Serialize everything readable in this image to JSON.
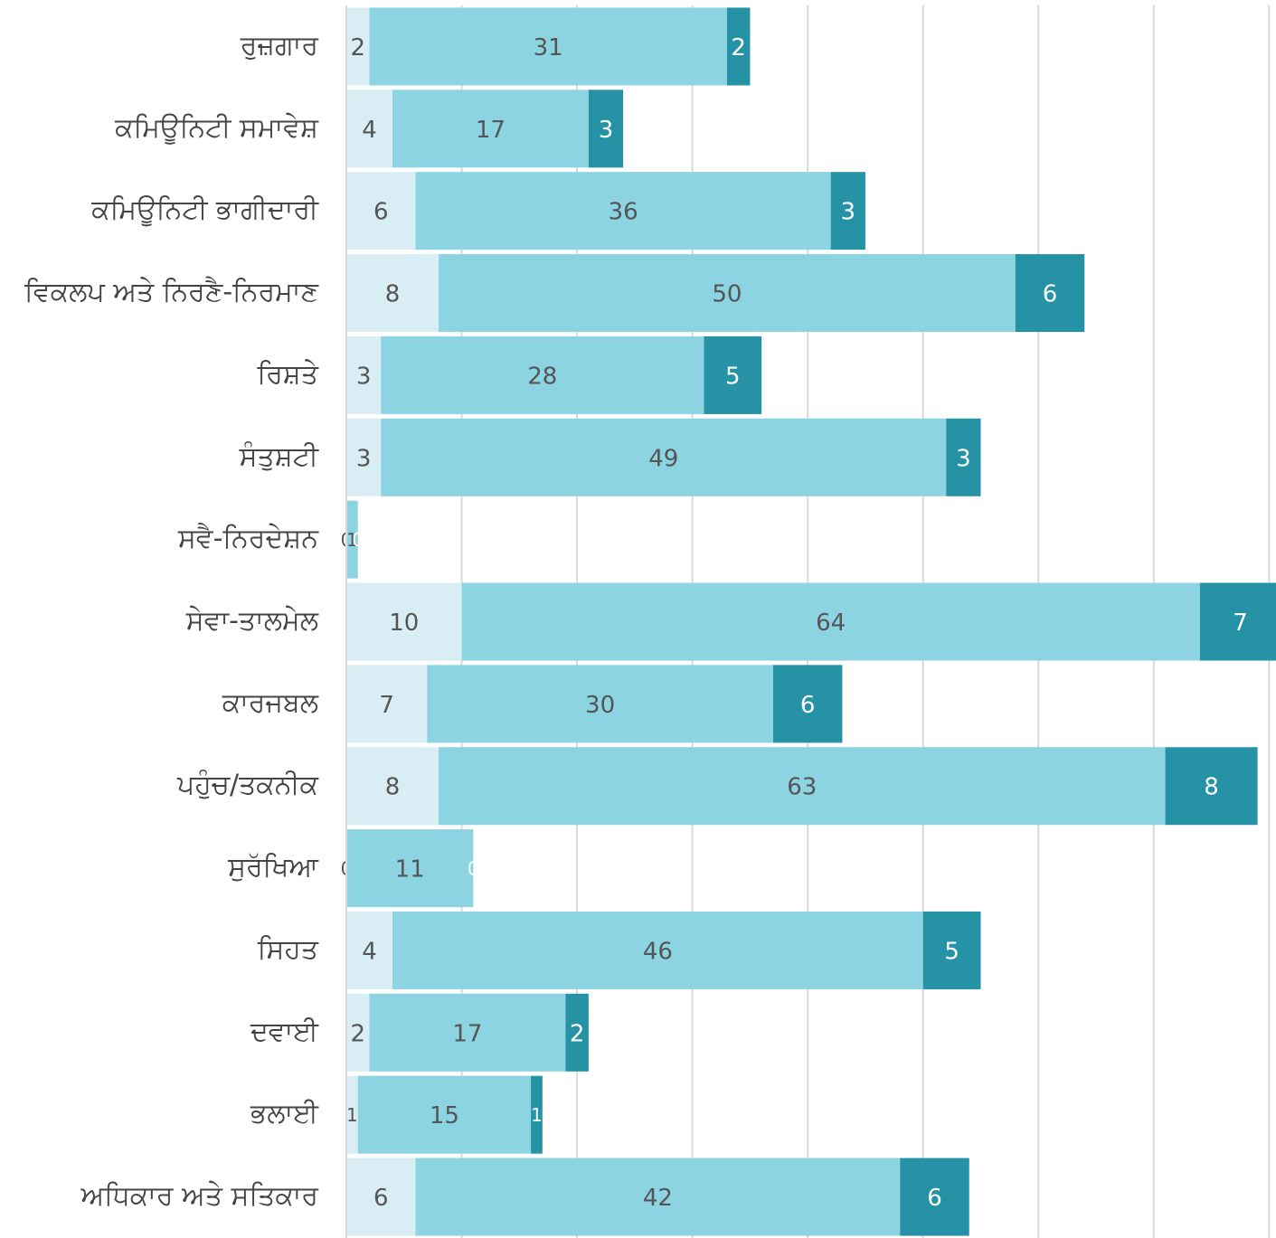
{
  "chart_data": {
    "type": "bar",
    "orientation": "horizontal",
    "stacked": true,
    "categories": [
      "ਰੁਜ਼ਗਾਰ",
      "ਕਮਿਊਨਿਟੀ ਸਮਾਵੇਸ਼",
      "ਕਮਿਊਨਿਟੀ ਭਾਗੀਦਾਰੀ",
      "ਵਿਕਲਪ ਅਤੇ ਨਿਰਣੈ-ਨਿਰਮਾਣ",
      "ਰਿਸ਼ਤੇ",
      "ਸੰਤੁਸ਼ਟੀ",
      "ਸਵੈ-ਨਿਰਦੇਸ਼ਨ",
      "ਸੇਵਾ-ਤਾਲਮੇਲ",
      "ਕਾਰਜਬਲ",
      "ਪਹੁੰਚ/ਤਕਨੀਕ",
      "ਸੁਰੱਖਿਆ",
      "ਸਿਹਤ",
      "ਦਵਾਈ",
      "ਭਲਾਈ",
      "ਅਧਿਕਾਰ ਅਤੇ ਸਤਿਕਾਰ"
    ],
    "series": [
      {
        "color": "#d9eef4",
        "values": [
          2,
          4,
          6,
          8,
          3,
          3,
          0,
          10,
          7,
          8,
          0,
          4,
          2,
          1,
          6
        ]
      },
      {
        "color": "#8cd4e2",
        "values": [
          31,
          17,
          36,
          50,
          28,
          49,
          1,
          64,
          30,
          63,
          11,
          46,
          17,
          15,
          42
        ]
      },
      {
        "color": "#2592a6",
        "values": [
          2,
          3,
          3,
          6,
          5,
          3,
          0,
          7,
          6,
          8,
          0,
          5,
          2,
          1,
          6
        ]
      }
    ],
    "xlim": [
      0,
      80.6
    ],
    "grid": true,
    "legend": "none",
    "title": "",
    "xlabel": "",
    "ylabel": ""
  }
}
